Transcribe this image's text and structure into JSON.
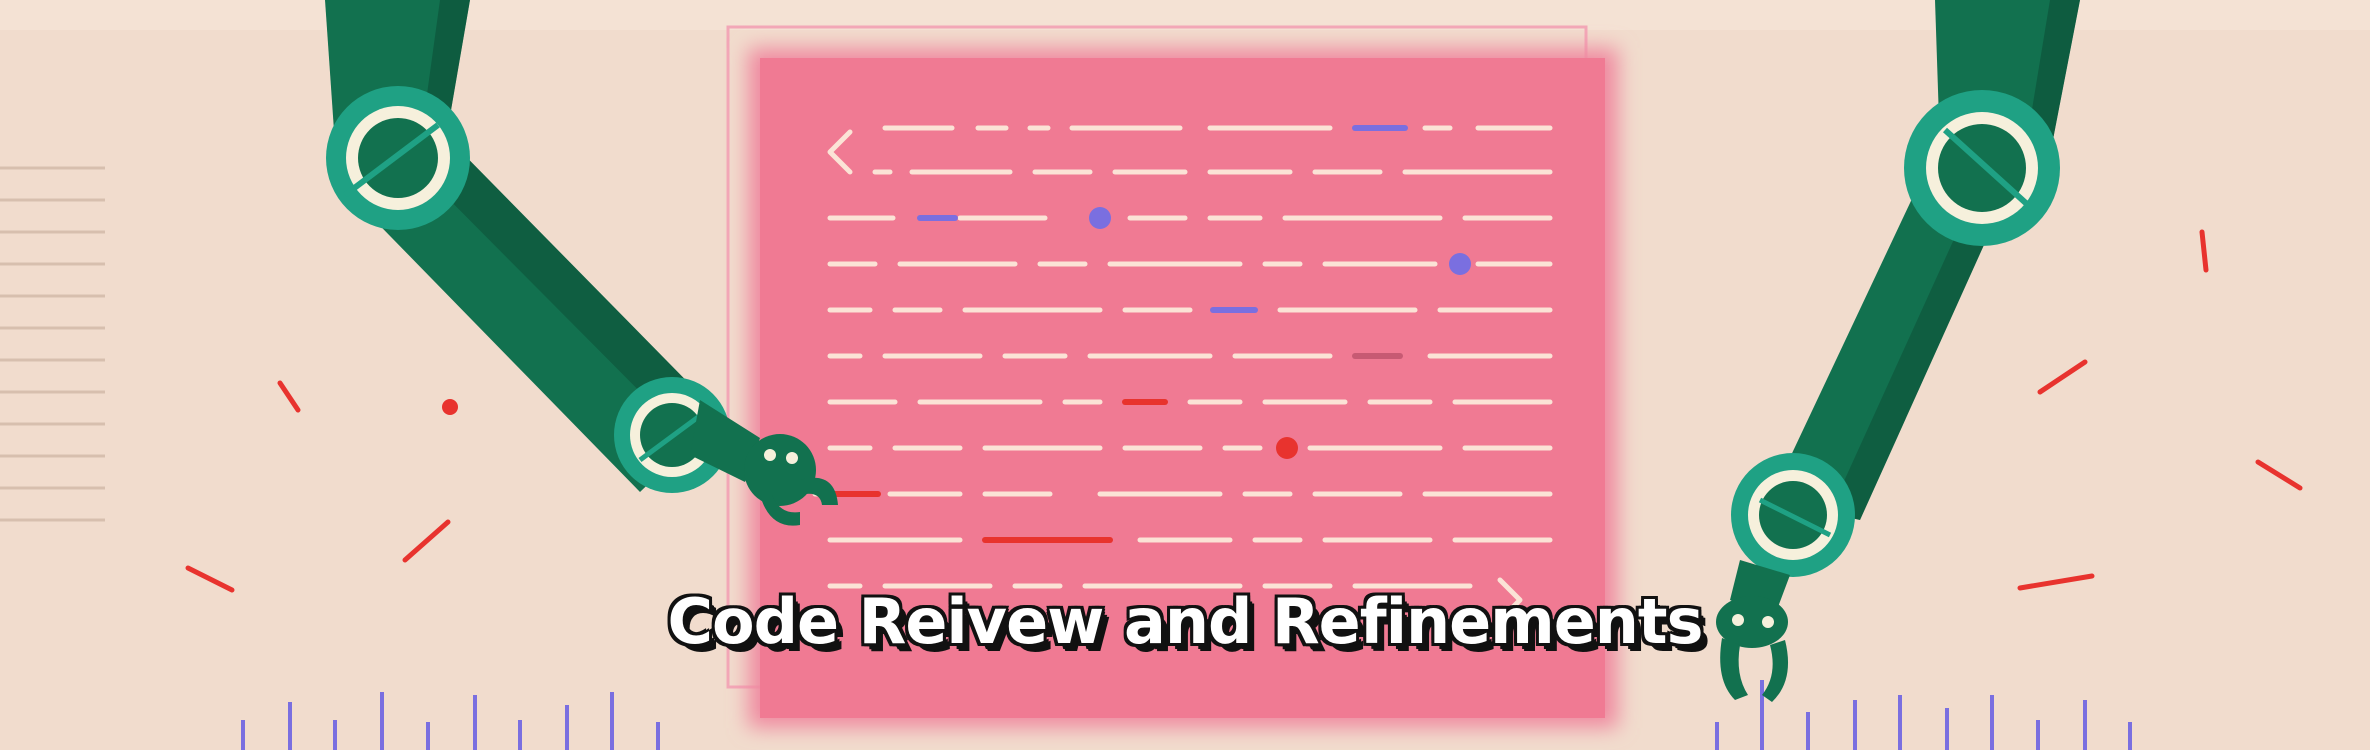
{
  "banner": {
    "title": "Code Reivew and Refinements"
  },
  "colors": {
    "background": "#f1dccd",
    "code_panel": "#f07a93",
    "code_line": "#fbe3d6",
    "arm": "#12714f",
    "arm_dark": "#0c4f37",
    "joint": "#1fa184",
    "joint_ring": "#f6f0dc",
    "accent_red": "#e8332e",
    "accent_blue": "#7a6fe0"
  },
  "icons": {
    "left_bracket": "chevron-left-icon",
    "right_bracket": "chevron-right-icon"
  }
}
